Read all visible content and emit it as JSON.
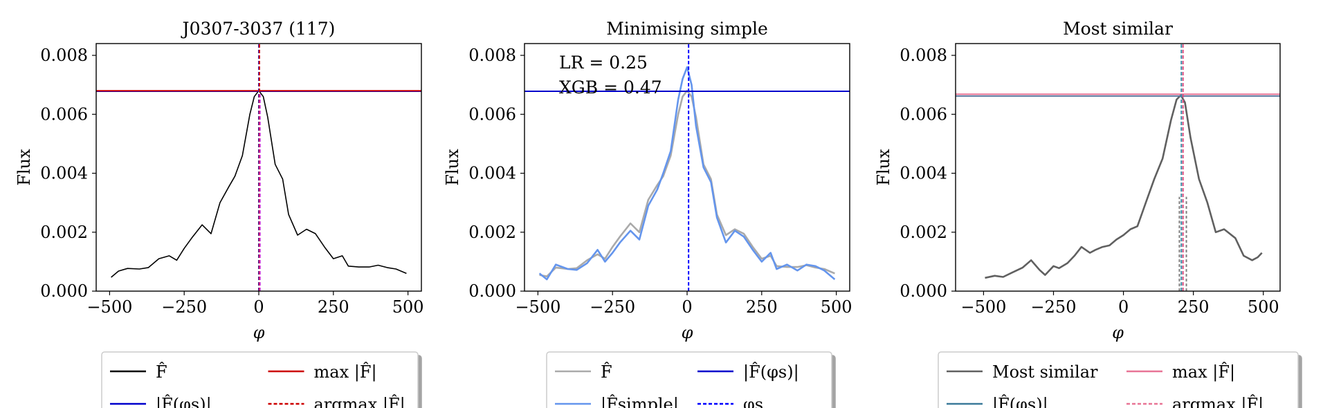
{
  "chart_data": [
    {
      "type": "line",
      "title": "J0307-3037 (117)",
      "xlabel": "φ",
      "ylabel": "Flux",
      "xlim": [
        -545,
        545
      ],
      "ylim": [
        0.0,
        0.0084
      ],
      "xticks": [
        -500,
        -250,
        0,
        250,
        500
      ],
      "xtick_labels": [
        "−500",
        "−250",
        "0",
        "250",
        "500"
      ],
      "yticks": [
        0.0,
        0.002,
        0.004,
        0.006,
        0.008
      ],
      "ytick_labels": [
        "0.000",
        "0.002",
        "0.004",
        "0.006",
        "0.008"
      ],
      "grid": false,
      "legend_position": "below",
      "series": [
        {
          "name": "F̂",
          "color": "#000000",
          "dash": "",
          "x": [
            -495,
            -470,
            -440,
            -400,
            -370,
            -335,
            -300,
            -275,
            -250,
            -225,
            -190,
            -160,
            -130,
            -100,
            -80,
            -55,
            -30,
            -15,
            0,
            15,
            30,
            55,
            80,
            100,
            130,
            160,
            190,
            220,
            250,
            280,
            300,
            335,
            370,
            400,
            430,
            460,
            495
          ],
          "y": [
            0.00047,
            0.00068,
            0.00077,
            0.00075,
            0.0008,
            0.0011,
            0.0012,
            0.00105,
            0.00145,
            0.0018,
            0.00225,
            0.00195,
            0.003,
            0.00355,
            0.0039,
            0.0046,
            0.006,
            0.0066,
            0.0068,
            0.0066,
            0.0059,
            0.0043,
            0.0038,
            0.0026,
            0.0019,
            0.0021,
            0.00195,
            0.0015,
            0.0011,
            0.0012,
            0.00085,
            0.00082,
            0.00082,
            0.00088,
            0.0008,
            0.00075,
            0.0006
          ]
        }
      ],
      "hlines": [
        {
          "name": "|F̂(φs)|",
          "y": 0.00678,
          "color": "#0000cc",
          "dash": ""
        },
        {
          "name": "max |F̂|",
          "y": 0.0068,
          "color": "#cc0000",
          "dash": ""
        }
      ],
      "vlines": [
        {
          "name": "φs",
          "x": 0,
          "y_to": 0.0084,
          "color": "#2222cc",
          "dash": "5,3"
        },
        {
          "name": "argmax |F̂|",
          "x": 2,
          "y_to": 0.0084,
          "color": "#cc0000",
          "dash": "5,3"
        },
        {
          "name": "",
          "x": 4,
          "y_to": 0.0067,
          "color": "#cc33cc",
          "dash": "5,3"
        }
      ],
      "annotations": [],
      "legend": [
        {
          "label": "F̂",
          "color": "#000000",
          "dash": ""
        },
        {
          "label": "max |F̂|",
          "color": "#cc0000",
          "dash": ""
        },
        {
          "label": "|F̂(φs)|",
          "color": "#0000cc",
          "dash": ""
        },
        {
          "label": "argmax |F̂|",
          "color": "#cc0000",
          "dash": "5,3"
        }
      ]
    },
    {
      "type": "line",
      "title": "Minimising simple",
      "xlabel": "φ",
      "ylabel": "Flux",
      "xlim": [
        -545,
        545
      ],
      "ylim": [
        0.0,
        0.0084
      ],
      "xticks": [
        -500,
        -250,
        0,
        250,
        500
      ],
      "xtick_labels": [
        "−500",
        "−250",
        "0",
        "250",
        "500"
      ],
      "yticks": [
        0.0,
        0.002,
        0.004,
        0.006,
        0.008
      ],
      "ytick_labels": [
        "0.000",
        "0.002",
        "0.004",
        "0.006",
        "0.008"
      ],
      "grid": false,
      "legend_position": "below",
      "series": [
        {
          "name": "F̂",
          "color": "#aaaaaa",
          "dash": "",
          "x": [
            -495,
            -470,
            -440,
            -400,
            -370,
            -335,
            -300,
            -275,
            -250,
            -225,
            -190,
            -160,
            -130,
            -100,
            -80,
            -55,
            -30,
            -15,
            0,
            15,
            30,
            55,
            80,
            100,
            130,
            160,
            190,
            220,
            250,
            280,
            300,
            335,
            370,
            400,
            430,
            460,
            495
          ],
          "y": [
            0.00055,
            0.0005,
            0.0008,
            0.00075,
            0.00078,
            0.00105,
            0.00125,
            0.0011,
            0.0015,
            0.00185,
            0.0023,
            0.002,
            0.0031,
            0.0036,
            0.0039,
            0.0046,
            0.006,
            0.0066,
            0.0068,
            0.0066,
            0.0059,
            0.0043,
            0.0038,
            0.0026,
            0.0019,
            0.0021,
            0.00195,
            0.0015,
            0.0011,
            0.0012,
            0.00085,
            0.00082,
            0.00082,
            0.00088,
            0.0008,
            0.00075,
            0.0006
          ]
        },
        {
          "name": "|F̂simple|",
          "color": "#6495ed",
          "dash": "",
          "x": [
            -495,
            -470,
            -440,
            -400,
            -370,
            -335,
            -300,
            -275,
            -250,
            -225,
            -190,
            -160,
            -130,
            -100,
            -80,
            -55,
            -30,
            -15,
            0,
            15,
            30,
            55,
            80,
            100,
            130,
            160,
            190,
            220,
            250,
            280,
            300,
            335,
            370,
            400,
            430,
            460,
            495
          ],
          "y": [
            0.0006,
            0.0004,
            0.0009,
            0.00075,
            0.00072,
            0.00095,
            0.0014,
            0.001,
            0.0013,
            0.00165,
            0.00205,
            0.00175,
            0.0029,
            0.00345,
            0.004,
            0.00475,
            0.0065,
            0.0072,
            0.0076,
            0.007,
            0.0056,
            0.0042,
            0.0037,
            0.0025,
            0.00165,
            0.00205,
            0.00185,
            0.0014,
            0.001,
            0.0013,
            0.00075,
            0.0009,
            0.0007,
            0.0009,
            0.00085,
            0.0007,
            0.0004
          ]
        }
      ],
      "hlines": [
        {
          "name": "|F̂(φs)|",
          "y": 0.00678,
          "color": "#0000cc",
          "dash": ""
        }
      ],
      "vlines": [
        {
          "name": "φs",
          "x": 5,
          "y_to": 0.0084,
          "color": "#0000ff",
          "dash": "5,3"
        }
      ],
      "annotations": [
        "LR = 0.25",
        "XGB = 0.47"
      ],
      "legend": [
        {
          "label": "F̂",
          "color": "#aaaaaa",
          "dash": ""
        },
        {
          "label": "|F̂(φs)|",
          "color": "#0000cc",
          "dash": ""
        },
        {
          "label": "|F̂simple|",
          "color": "#6495ed",
          "dash": ""
        },
        {
          "label": "φs",
          "color": "#0000ff",
          "dash": "5,3"
        }
      ]
    },
    {
      "type": "line",
      "title": "Most similar",
      "xlabel": "φ",
      "ylabel": "Flux",
      "xlim": [
        -600,
        560
      ],
      "ylim": [
        0.0,
        0.0084
      ],
      "xticks": [
        -500,
        -250,
        0,
        250,
        500
      ],
      "xtick_labels": [
        "−500",
        "−250",
        "0",
        "250",
        "500"
      ],
      "yticks": [
        0.0,
        0.002,
        0.004,
        0.006,
        0.008
      ],
      "ytick_labels": [
        "0.000",
        "0.002",
        "0.004",
        "0.006",
        "0.008"
      ],
      "grid": false,
      "legend_position": "below",
      "series": [
        {
          "name": "Most similar",
          "color": "#606060",
          "dash": "",
          "x": [
            -495,
            -460,
            -430,
            -400,
            -360,
            -330,
            -300,
            -280,
            -250,
            -230,
            -200,
            -175,
            -150,
            -120,
            -100,
            -75,
            -50,
            -25,
            0,
            25,
            50,
            80,
            110,
            140,
            170,
            190,
            205,
            220,
            240,
            270,
            300,
            330,
            360,
            400,
            430,
            460,
            480,
            495
          ],
          "y": [
            0.00045,
            0.00052,
            0.00048,
            0.00062,
            0.0008,
            0.00105,
            0.00072,
            0.00055,
            0.00085,
            0.00078,
            0.00095,
            0.0012,
            0.0015,
            0.0013,
            0.0014,
            0.0015,
            0.00155,
            0.00175,
            0.0019,
            0.0021,
            0.0022,
            0.003,
            0.0038,
            0.0045,
            0.0058,
            0.0065,
            0.00665,
            0.0064,
            0.0052,
            0.0038,
            0.003,
            0.002,
            0.0021,
            0.0018,
            0.0012,
            0.00105,
            0.00115,
            0.0013
          ]
        }
      ],
      "hlines": [
        {
          "name": "max |F̂|",
          "y": 0.00668,
          "color": "#e87496",
          "dash": ""
        },
        {
          "name": "|F̂(φs)|",
          "y": 0.00662,
          "color": "#5b7aa0",
          "dash": ""
        }
      ],
      "vlines": [
        {
          "name": "φs",
          "x": 207,
          "y_to": 0.0084,
          "color": "#3a8fa8",
          "dash": "5,3"
        },
        {
          "name": "argmax |F̂|",
          "x": 213,
          "y_to": 0.0084,
          "color": "#e05080",
          "dash": "5,3"
        },
        {
          "name": "",
          "x": 200,
          "y_to": 0.0032,
          "color": "#808080",
          "dash": "4,3"
        },
        {
          "name": "",
          "x": 225,
          "y_to": 0.0032,
          "color": "#808080",
          "dash": "4,3"
        }
      ],
      "annotations": [],
      "legend": [
        {
          "label": "Most similar",
          "color": "#606060",
          "dash": ""
        },
        {
          "label": "max |F̂|",
          "color": "#e87496",
          "dash": ""
        },
        {
          "label": "|F̂(φs)|",
          "color": "#3a7a9a",
          "dash": ""
        },
        {
          "label": "argmax |F̂|",
          "color": "#e87496",
          "dash": "5,3"
        }
      ]
    }
  ]
}
